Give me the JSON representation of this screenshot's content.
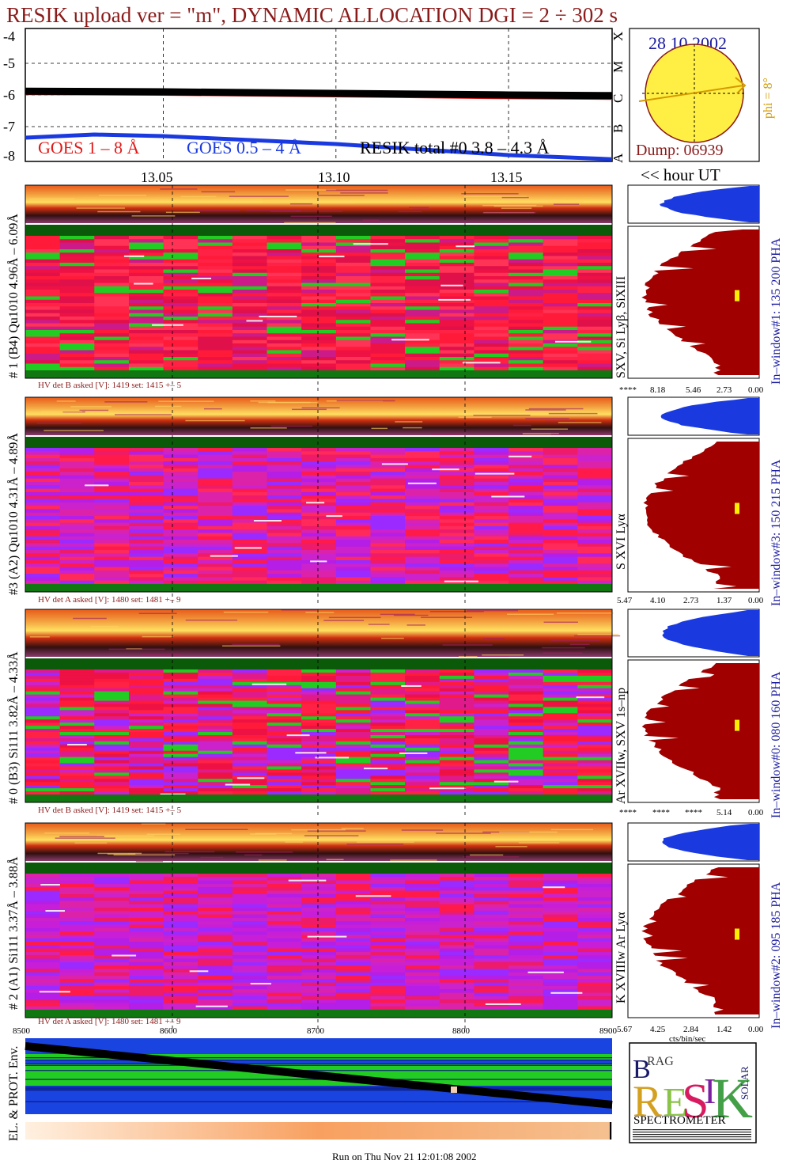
{
  "title": "RESIK upload ver = \"m\", DYNAMIC ALLOCATION  DGI =   2 ÷ 302 s",
  "colors": {
    "title": "#8b1a1a",
    "goes_long": "#e01a1a",
    "goes_short": "#1a3ae0",
    "resik": "#000000",
    "sun": "#ffee44",
    "phi": "#d49a00",
    "histogram_dark": "#a00000",
    "histogram_blue": "#1a3ae0"
  },
  "lightcurve": {
    "y_ticks": [
      "-4",
      "-5",
      "-6",
      "-7",
      "-8"
    ],
    "x_ticks": [
      "13.05",
      "13.10",
      "13.15"
    ],
    "class_labels": [
      "A",
      "B",
      "C",
      "M",
      "X"
    ],
    "legend": {
      "goes_long": "GOES 1 – 8 Å",
      "goes_short": "GOES 0.5 – 4 Å",
      "resik": "RESIK total #0  3.8 – 4.3 Å"
    },
    "hour_label": "<< hour UT"
  },
  "chart_data": {
    "type": "line",
    "xlabel": "hour UT",
    "ylabel": "",
    "ylim": [
      -8.1,
      -3.9
    ],
    "xlim": [
      13.01,
      13.18
    ],
    "series": [
      {
        "name": "GOES 1 – 8 Å",
        "x": [
          13.01,
          13.05,
          13.1,
          13.15,
          13.18
        ],
        "values": [
          -5.93,
          -5.95,
          -6.0,
          -6.06,
          -6.08
        ]
      },
      {
        "name": "GOES 0.5 – 4 Å",
        "x": [
          13.01,
          13.03,
          13.05,
          13.1,
          13.15,
          13.18
        ],
        "values": [
          -7.35,
          -7.25,
          -7.3,
          -7.55,
          -7.9,
          -8.03
        ]
      },
      {
        "name": "RESIK total #0  3.8 – 4.3 Å",
        "x": [
          13.01,
          13.05,
          13.1,
          13.15,
          13.18
        ],
        "values": [
          -5.88,
          -5.9,
          -5.95,
          -6.0,
          -6.02
        ]
      }
    ],
    "sun": {
      "date": "28 10 2002",
      "dump": "Dump: 06939",
      "phi": "phi =  8°"
    }
  },
  "panels": [
    {
      "ylabel": "# 1 (B4) Qu1010 4.96Å – 6.09Å",
      "line_label": "SXV, Si Lyβ, SiXIII",
      "window_label": "In–window#1:  135 200 PHA",
      "hv": "HV det B asked [V]:  1419 set:  1415  +–    5",
      "pha_ticks": [
        "****",
        "8.18",
        "5.46",
        "2.73",
        "0.00"
      ]
    },
    {
      "ylabel": "#3 (A2) Qu1010  4.31Å – 4.89Å",
      "line_label": "S XVI Lyα",
      "window_label": "In–window#3:  150 215 PHA",
      "hv": "HV det A asked [V]:  1480 set:  1481  +–    9",
      "pha_ticks": [
        "5.47",
        "4.10",
        "2.73",
        "1.37",
        "0.00"
      ]
    },
    {
      "ylabel": "# 0 (B3) Si111  3.82Å – 4.33Å",
      "line_label": "Ar XVIIw,  SXV 1s–np",
      "window_label": "In–window#0:  080 160 PHA",
      "hv": "HV det B asked [V]:  1419 set:  1415  +–    5",
      "pha_ticks": [
        "****",
        "****",
        "****",
        "5.14",
        "0.00"
      ]
    },
    {
      "ylabel": "# 2 (A1) Si111  3.37Å –  3.88Å",
      "line_label": "K XVIIIw  Ar Lyα",
      "window_label": "In–window#2:  095 185 PHA",
      "hv": "HV det A asked [V]:  1480 set:  1481  +–    9",
      "pha_ticks": [
        "5.67",
        "4.25",
        "2.84",
        "1.42",
        "0.00"
      ]
    }
  ],
  "pha_unit": "cts/bin/sec",
  "bottom": {
    "x_ticks": [
      "8500",
      "8600",
      "8700",
      "8800",
      "8900"
    ],
    "ylabel": "EL. & PROT. Env."
  },
  "logo": {
    "letters": [
      "B",
      "RAG",
      "R",
      "E",
      "S",
      "I",
      "K",
      "SOLAR"
    ],
    "caption": "SPECTROMETER"
  },
  "footer": "Run on Thu Nov 21 12:01:08 2002"
}
